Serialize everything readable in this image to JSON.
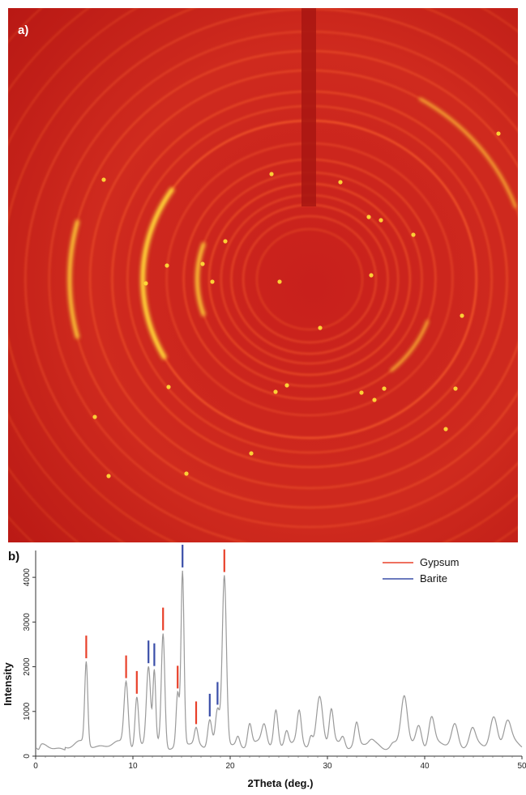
{
  "panels": {
    "a_label": "a)",
    "b_label": "b)"
  },
  "colors": {
    "pattern_bg": "#d01c18",
    "ring": "#ff6a2c",
    "bright": "#ffe23a",
    "gypsum": "#e8402a",
    "barite": "#3a4ea8",
    "trace": "#9a9a9a"
  },
  "chart_data": {
    "type": "line",
    "xlabel": "2Theta (deg.)",
    "ylabel": "Intensity",
    "xlim": [
      0,
      50
    ],
    "ylim": [
      0,
      4600
    ],
    "xticks": [
      0,
      10,
      20,
      30,
      40,
      50
    ],
    "yticks": [
      0,
      1000,
      2000,
      3000,
      4000
    ],
    "grid": false,
    "legend_position": "top-right",
    "baseline": 250,
    "peaks": [
      {
        "x": 0.3,
        "y": 150,
        "w": 0.2
      },
      {
        "x": 5.2,
        "y": 2100,
        "w": 0.22
      },
      {
        "x": 9.3,
        "y": 1700,
        "w": 0.3
      },
      {
        "x": 10.4,
        "y": 1350,
        "w": 0.25
      },
      {
        "x": 11.6,
        "y": 2000,
        "w": 0.3
      },
      {
        "x": 12.2,
        "y": 1850,
        "w": 0.2
      },
      {
        "x": 13.1,
        "y": 2750,
        "w": 0.25
      },
      {
        "x": 14.6,
        "y": 1400,
        "w": 0.22
      },
      {
        "x": 15.1,
        "y": 4100,
        "w": 0.22
      },
      {
        "x": 16.5,
        "y": 600,
        "w": 0.25
      },
      {
        "x": 17.9,
        "y": 900,
        "w": 0.3
      },
      {
        "x": 18.7,
        "y": 1000,
        "w": 0.3
      },
      {
        "x": 19.4,
        "y": 4000,
        "w": 0.3
      },
      {
        "x": 20.8,
        "y": 450,
        "w": 0.25
      },
      {
        "x": 22.0,
        "y": 780,
        "w": 0.3
      },
      {
        "x": 23.5,
        "y": 700,
        "w": 0.35
      },
      {
        "x": 24.7,
        "y": 1050,
        "w": 0.3
      },
      {
        "x": 25.8,
        "y": 620,
        "w": 0.3
      },
      {
        "x": 27.1,
        "y": 950,
        "w": 0.3
      },
      {
        "x": 28.3,
        "y": 500,
        "w": 0.25
      },
      {
        "x": 29.2,
        "y": 1350,
        "w": 0.45
      },
      {
        "x": 30.4,
        "y": 1000,
        "w": 0.3
      },
      {
        "x": 31.6,
        "y": 480,
        "w": 0.3
      },
      {
        "x": 33.0,
        "y": 750,
        "w": 0.3
      },
      {
        "x": 34.5,
        "y": 320,
        "w": 0.35
      },
      {
        "x": 36.7,
        "y": 300,
        "w": 0.3
      },
      {
        "x": 37.9,
        "y": 1330,
        "w": 0.45
      },
      {
        "x": 39.4,
        "y": 720,
        "w": 0.4
      },
      {
        "x": 40.7,
        "y": 860,
        "w": 0.4
      },
      {
        "x": 43.1,
        "y": 740,
        "w": 0.45
      },
      {
        "x": 44.9,
        "y": 560,
        "w": 0.4
      },
      {
        "x": 47.1,
        "y": 900,
        "w": 0.5
      },
      {
        "x": 48.5,
        "y": 780,
        "w": 0.5
      }
    ],
    "series": [
      {
        "name": "Gypsum",
        "color": "#e8402a",
        "markers": [
          5.2,
          9.3,
          10.4,
          13.1,
          14.6,
          16.5,
          19.4
        ]
      },
      {
        "name": "Barite",
        "color": "#3a4ea8",
        "markers": [
          11.6,
          12.2,
          15.1,
          17.9,
          18.7
        ]
      }
    ]
  }
}
